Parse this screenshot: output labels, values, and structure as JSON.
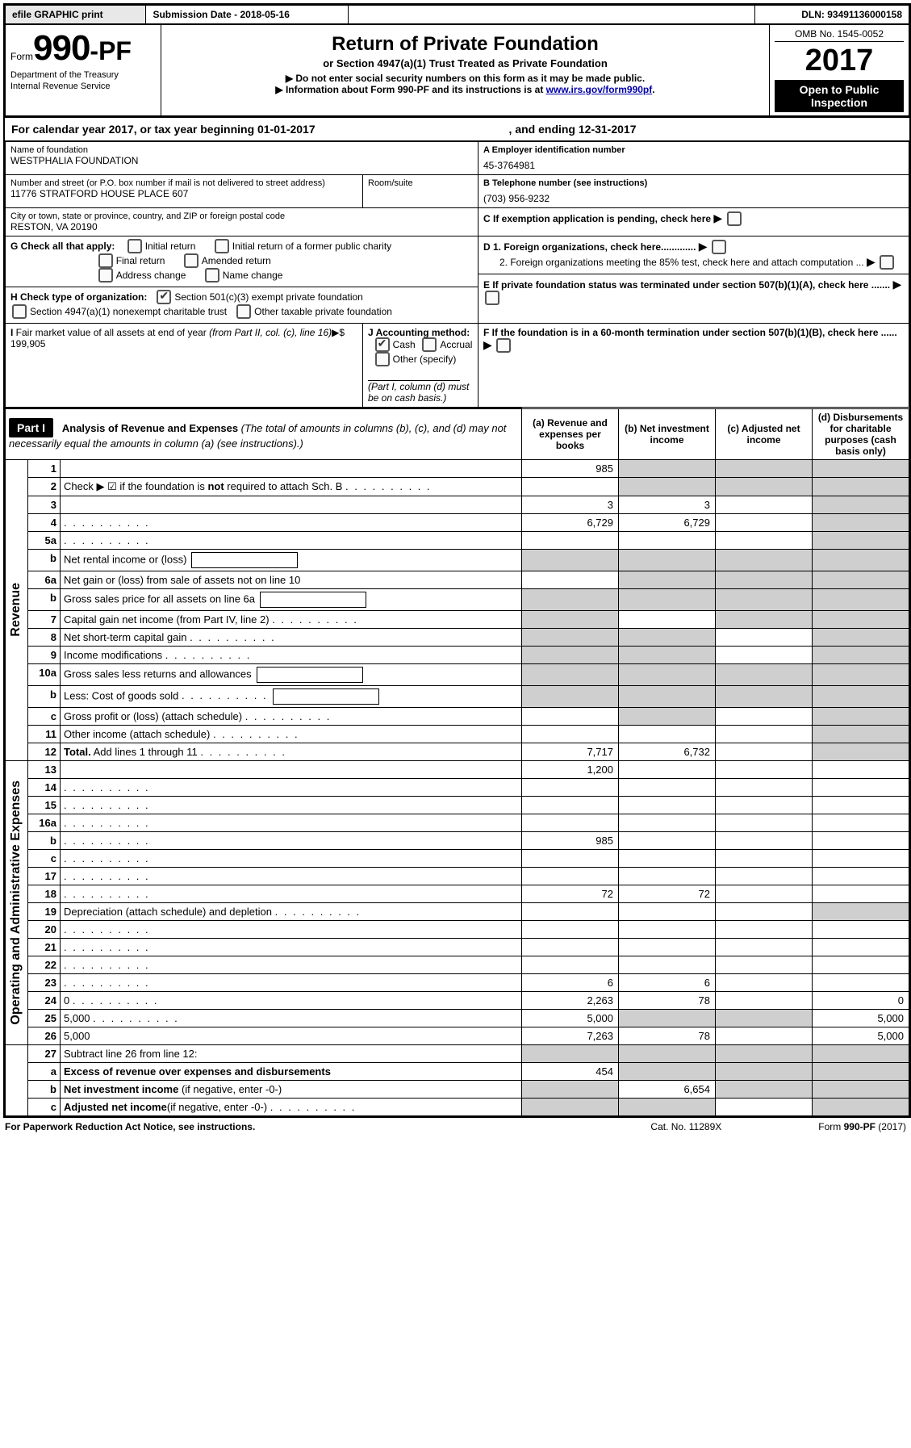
{
  "top": {
    "efile_btn": "efile GRAPHIC print",
    "submission": "Submission Date - 2018-05-16",
    "dln": "DLN: 93491136000158"
  },
  "header": {
    "form_word": "Form",
    "form_num": "990-PF",
    "dept1": "Department of the Treasury",
    "dept2": "Internal Revenue Service",
    "title": "Return of Private Foundation",
    "subtitle": "or Section 4947(a)(1) Trust Treated as Private Foundation",
    "warn": "▶ Do not enter social security numbers on this form as it may be made public.",
    "info_prefix": "▶ Information about Form 990-PF and its instructions is at ",
    "info_link": "www.irs.gov/form990pf",
    "info_suffix": ".",
    "omb": "OMB No. 1545-0052",
    "year": "2017",
    "open": "Open to Public Inspection"
  },
  "calyear": {
    "line_a": "For calendar year 2017, or tax year beginning 01-01-2017",
    "line_b": ", and ending 12-31-2017"
  },
  "ident": {
    "name_lbl": "Name of foundation",
    "name_val": "WESTPHALIA FOUNDATION",
    "ein_lbl": "A Employer identification number",
    "ein_val": "45-3764981",
    "addr_lbl": "Number and street (or P.O. box number if mail is not delivered to street address)",
    "addr_val": "11776 STRATFORD HOUSE PLACE 607",
    "room_lbl": "Room/suite",
    "tel_lbl": "B Telephone number (see instructions)",
    "tel_val": "(703) 956-9232",
    "city_lbl": "City or town, state or province, country, and ZIP or foreign postal code",
    "city_val": "RESTON, VA  20190",
    "c_lbl": "C If exemption application is pending, check here",
    "g_lbl": "G Check all that apply:",
    "g_opts": [
      "Initial return",
      "Initial return of a former public charity",
      "Final return",
      "Amended return",
      "Address change",
      "Name change"
    ],
    "d1": "D 1. Foreign organizations, check here.............",
    "d2": "2. Foreign organizations meeting the 85% test, check here and attach computation ...",
    "h_lbl": "H Check type of organization:",
    "h1": "Section 501(c)(3) exempt private foundation",
    "h2": "Section 4947(a)(1) nonexempt charitable trust",
    "h3": "Other taxable private foundation",
    "e_lbl": "E  If private foundation status was terminated under section 507(b)(1)(A), check here .......",
    "i_lbl": "I Fair market value of all assets at end of year (from Part II, col. (c), line 16)▶$  199,905",
    "j_lbl": "J Accounting method:",
    "j_cash": "Cash",
    "j_accr": "Accrual",
    "j_other": "Other (specify)",
    "j_note": "(Part I, column (d) must be on cash basis.)",
    "f_lbl": "F  If the foundation is in a 60-month termination under section 507(b)(1)(B), check here ......"
  },
  "part1": {
    "label": "Part I",
    "title": "Analysis of Revenue and Expenses",
    "title_note": " (The total of amounts in columns (b), (c), and (d) may not necessarily equal the amounts in column (a) (see instructions).)",
    "col_a": "(a)   Revenue and expenses per books",
    "col_b": "(b)  Net investment income",
    "col_c": "(c)  Adjusted net income",
    "col_d": "(d)  Disbursements for charitable purposes (cash basis only)",
    "side_rev": "Revenue",
    "side_exp": "Operating and Administrative Expenses"
  },
  "rows": {
    "r1": {
      "n": "1",
      "d": "",
      "a": "985",
      "b": "",
      "c": "",
      "sb": 1,
      "sc": 1,
      "sd": 1
    },
    "r2": {
      "n": "2",
      "d": "Check ▶ ☑ if the foundation is <b>not</b> required to attach Sch. B",
      "dots": 1,
      "sa": 0,
      "sb": 1,
      "sc": 1,
      "sd": 1,
      "noval": 1
    },
    "r3": {
      "n": "3",
      "d": "",
      "a": "3",
      "b": "3",
      "c": "",
      "sd": 1
    },
    "r4": {
      "n": "4",
      "d": "",
      "dots": 1,
      "a": "6,729",
      "b": "6,729",
      "c": "",
      "sd": 1
    },
    "r5a": {
      "n": "5a",
      "d": "",
      "dots": 1,
      "a": "",
      "b": "",
      "c": "",
      "sd": 1
    },
    "r5b": {
      "n": "b",
      "d": "Net rental income or (loss)",
      "box": 1,
      "sa": 1,
      "sb": 1,
      "sc": 1,
      "sd": 1
    },
    "r6a": {
      "n": "6a",
      "d": "Net gain or (loss) from sale of assets not on line 10",
      "a": "",
      "sb": 1,
      "sc": 1,
      "sd": 1
    },
    "r6b": {
      "n": "b",
      "d": "Gross sales price for all assets on line 6a",
      "box": 1,
      "sa": 1,
      "sb": 1,
      "sc": 1,
      "sd": 1
    },
    "r7": {
      "n": "7",
      "d": "Capital gain net income (from Part IV, line 2)",
      "dots": 1,
      "sa": 1,
      "b": "",
      "sc": 1,
      "sd": 1
    },
    "r8": {
      "n": "8",
      "d": "Net short-term capital gain",
      "dots": 1,
      "sa": 1,
      "sb": 1,
      "c": "",
      "sd": 1
    },
    "r9": {
      "n": "9",
      "d": "Income modifications",
      "dots": 1,
      "sa": 1,
      "sb": 1,
      "c": "",
      "sd": 1
    },
    "r10a": {
      "n": "10a",
      "d": "Gross sales less returns and allowances",
      "box": 1,
      "sa": 1,
      "sb": 1,
      "sc": 1,
      "sd": 1
    },
    "r10b": {
      "n": "b",
      "d": "Less: Cost of goods sold",
      "dots": 1,
      "box": 1,
      "sa": 1,
      "sb": 1,
      "sc": 1,
      "sd": 1
    },
    "r10c": {
      "n": "c",
      "d": "Gross profit or (loss) (attach schedule)",
      "dots": 1,
      "a": "",
      "sb": 1,
      "c": "",
      "sd": 1
    },
    "r11": {
      "n": "11",
      "d": "Other income (attach schedule)",
      "dots": 1,
      "a": "",
      "b": "",
      "c": "",
      "sd": 1
    },
    "r12": {
      "n": "12",
      "d": "<b>Total.</b> Add lines 1 through 11",
      "dots": 1,
      "a": "7,717",
      "b": "6,732",
      "c": "",
      "sd": 1
    },
    "r13": {
      "n": "13",
      "d": "",
      "a": "1,200",
      "b": "",
      "c": ""
    },
    "r14": {
      "n": "14",
      "d": "",
      "dots": 1,
      "a": "",
      "b": "",
      "c": ""
    },
    "r15": {
      "n": "15",
      "d": "",
      "dots": 1,
      "a": "",
      "b": "",
      "c": ""
    },
    "r16a": {
      "n": "16a",
      "d": "",
      "dots": 1,
      "a": "",
      "b": "",
      "c": ""
    },
    "r16b": {
      "n": "b",
      "d": "",
      "dots": 1,
      "a": "985",
      "b": "",
      "c": ""
    },
    "r16c": {
      "n": "c",
      "d": "",
      "dots": 1,
      "a": "",
      "b": "",
      "c": ""
    },
    "r17": {
      "n": "17",
      "d": "",
      "dots": 1,
      "a": "",
      "b": "",
      "c": ""
    },
    "r18": {
      "n": "18",
      "d": "",
      "dots": 1,
      "a": "72",
      "b": "72",
      "c": ""
    },
    "r19": {
      "n": "19",
      "d": "Depreciation (attach schedule) and depletion",
      "dots": 1,
      "a": "",
      "b": "",
      "c": "",
      "sd": 1
    },
    "r20": {
      "n": "20",
      "d": "",
      "dots": 1,
      "a": "",
      "b": "",
      "c": ""
    },
    "r21": {
      "n": "21",
      "d": "",
      "dots": 1,
      "a": "",
      "b": "",
      "c": ""
    },
    "r22": {
      "n": "22",
      "d": "",
      "dots": 1,
      "a": "",
      "b": "",
      "c": ""
    },
    "r23": {
      "n": "23",
      "d": "",
      "dots": 1,
      "a": "6",
      "b": "6",
      "c": ""
    },
    "r24": {
      "n": "24",
      "d": "0",
      "dots": 1,
      "a": "2,263",
      "b": "78",
      "c": ""
    },
    "r25": {
      "n": "25",
      "d": "5,000",
      "dots": 1,
      "a": "5,000",
      "sb": 1,
      "sc": 1
    },
    "r26": {
      "n": "26",
      "d": "5,000",
      "a": "7,263",
      "b": "78",
      "c": ""
    },
    "r27": {
      "n": "27",
      "d": "Subtract line 26 from line 12:",
      "sa": 1,
      "sb": 1,
      "sc": 1,
      "sd": 1
    },
    "r27a": {
      "n": "a",
      "d": "<b>Excess of revenue over expenses and disbursements</b>",
      "a": "454",
      "sb": 1,
      "sc": 1,
      "sd": 1
    },
    "r27b": {
      "n": "b",
      "d": "<b>Net investment income</b> (if negative, enter -0-)",
      "sa": 1,
      "b": "6,654",
      "sc": 1,
      "sd": 1
    },
    "r27c": {
      "n": "c",
      "d": "<b>Adjusted net income</b>(if negative, enter -0-)",
      "dots": 1,
      "sa": 1,
      "sb": 1,
      "c": "",
      "sd": 1
    }
  },
  "footer": {
    "left": "For Paperwork Reduction Act Notice, see instructions.",
    "mid": "Cat. No. 11289X",
    "right": "Form 990-PF (2017)"
  },
  "colors": {
    "shade": "#cfcfcf",
    "btn_bg": "#e8e8e8",
    "link": "#0000aa"
  }
}
